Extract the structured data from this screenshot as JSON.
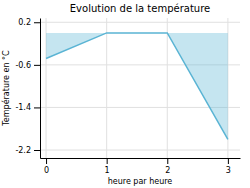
{
  "chart_data": {
    "type": "area",
    "title": "Evolution de la température",
    "xlabel": "heure par heure",
    "ylabel": "Température en °C",
    "x": [
      0,
      1,
      2,
      3
    ],
    "values": [
      -0.48,
      0.0,
      0.0,
      -2.0
    ],
    "color": "#5ab4d4",
    "xlim": [
      -0.1,
      3.2
    ],
    "ylim": [
      -2.35,
      0.28
    ],
    "xticks": [
      0,
      1,
      2,
      3
    ],
    "yticks": [
      0.2,
      -0.6,
      -1.4,
      -2.2
    ],
    "grid": true
  }
}
